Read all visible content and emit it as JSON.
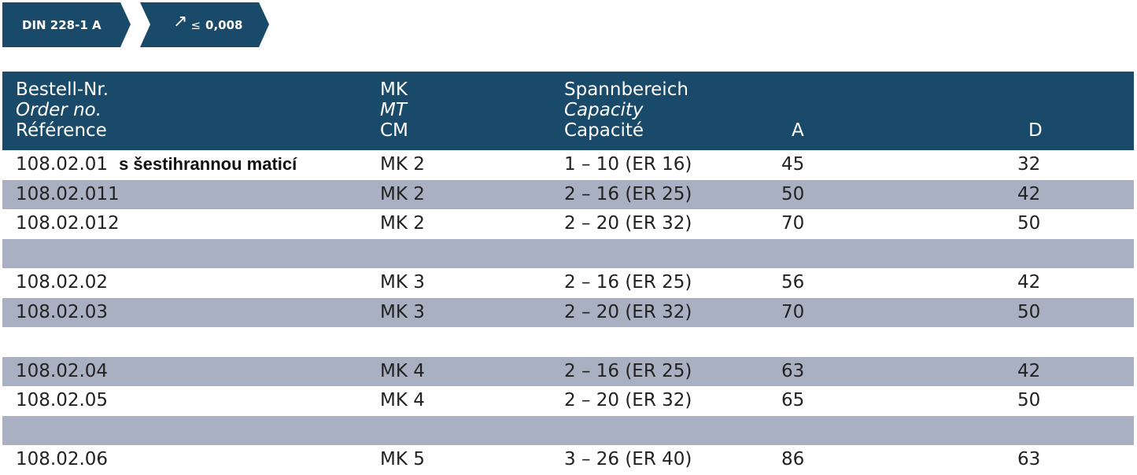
{
  "tags": {
    "standard": "DIN 228-1 A",
    "arrow_symbol": "↗",
    "le_symbol": "≤",
    "runout": "0,008"
  },
  "header": {
    "ref": [
      "Bestell-Nr.",
      "Order no.",
      "Référence"
    ],
    "mk": [
      "MK",
      "MT",
      "CM"
    ],
    "capacity": [
      "Spannbereich",
      "Capacity",
      "Capacité"
    ],
    "a": "A",
    "d": "D"
  },
  "rows": [
    {
      "ref": "108.02.01",
      "note": "s šestihrannou maticí",
      "mk": "MK 2",
      "cap": "1 – 10  (ER 16)",
      "a": "45",
      "d": "32",
      "shade": false
    },
    {
      "ref": "108.02.011",
      "note": "",
      "mk": "MK 2",
      "cap": "2 – 16  (ER 25)",
      "a": "50",
      "d": "42",
      "shade": true
    },
    {
      "ref": "108.02.012",
      "note": "",
      "mk": "MK 2",
      "cap": "2 – 20  (ER 32)",
      "a": "70",
      "d": "50",
      "shade": false
    },
    {
      "ref": "",
      "note": "",
      "mk": "",
      "cap": "",
      "a": "",
      "d": "",
      "shade": true
    },
    {
      "ref": "108.02.02",
      "note": "",
      "mk": "MK 3",
      "cap": "2 – 16  (ER 25)",
      "a": "56",
      "d": "42",
      "shade": false
    },
    {
      "ref": "108.02.03",
      "note": "",
      "mk": "MK 3",
      "cap": "2 – 20  (ER 32)",
      "a": "70",
      "d": "50",
      "shade": true
    },
    {
      "ref": "",
      "note": "",
      "mk": "",
      "cap": "",
      "a": "",
      "d": "",
      "shade": false
    },
    {
      "ref": "108.02.04",
      "note": "",
      "mk": "MK 4",
      "cap": "2 – 16  (ER 25)",
      "a": "63",
      "d": "42",
      "shade": true
    },
    {
      "ref": "108.02.05",
      "note": "",
      "mk": "MK 4",
      "cap": "2 – 20  (ER 32)",
      "a": "65",
      "d": "50",
      "shade": false
    },
    {
      "ref": "",
      "note": "",
      "mk": "",
      "cap": "",
      "a": "",
      "d": "",
      "shade": true
    },
    {
      "ref": "108.02.06",
      "note": "",
      "mk": "MK 5",
      "cap": "3 – 26  (ER 40)",
      "a": "86",
      "d": "63",
      "shade": false
    }
  ]
}
